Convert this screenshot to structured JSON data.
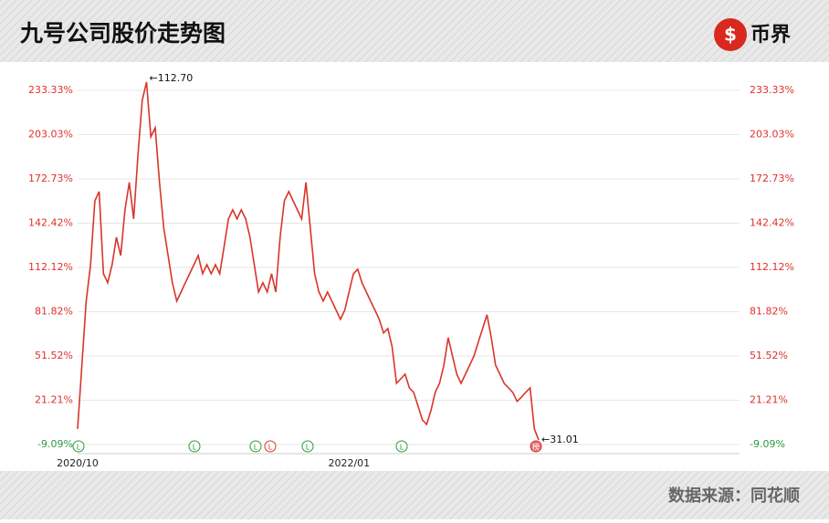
{
  "chart_data": {
    "type": "line",
    "title": "九号公司股价走势图",
    "brand": "币界",
    "source": "数据来源：同花顺",
    "categories": [
      "2020/10",
      null,
      null,
      null,
      null,
      null,
      null,
      null,
      null,
      null,
      null,
      null,
      null,
      null,
      null,
      null,
      null,
      null,
      null,
      null,
      null,
      null,
      null,
      null,
      null,
      null,
      null,
      null,
      null,
      null,
      null,
      null,
      null,
      null,
      null,
      null,
      null,
      null,
      null,
      null,
      null,
      null,
      null,
      null,
      null,
      null,
      null,
      null,
      null,
      null,
      null,
      null,
      null,
      null,
      null,
      null,
      null,
      null,
      null,
      null,
      null,
      null,
      null,
      "2022/01",
      null,
      null,
      null,
      null,
      null,
      null,
      null,
      null,
      null,
      null,
      null,
      null,
      null,
      null,
      null,
      null,
      null,
      null,
      null,
      null,
      null,
      null,
      null,
      null,
      null,
      null,
      null,
      null,
      null,
      null,
      null,
      null,
      null,
      null,
      null,
      null,
      null,
      null,
      null,
      null,
      null,
      null,
      null,
      null
    ],
    "series": [
      {
        "name": "九号公司",
        "color": "#d9352a",
        "values": [
          1.6,
          45.3,
          89.1,
          114.0,
          157.8,
          164.0,
          107.8,
          101.6,
          114.0,
          132.8,
          120.3,
          151.5,
          170.3,
          145.3,
          189.0,
          226.5,
          239.0,
          201.5,
          207.7,
          170.3,
          139.0,
          120.3,
          101.6,
          89.1,
          95.3,
          101.6,
          107.8,
          114.0,
          120.3,
          107.8,
          114.0,
          107.8,
          114.0,
          107.8,
          126.5,
          145.3,
          151.5,
          145.3,
          151.5,
          145.3,
          132.8,
          114.0,
          95.3,
          101.6,
          95.3,
          107.8,
          95.3,
          132.8,
          157.8,
          164.0,
          157.8,
          151.5,
          145.3,
          170.3,
          139.0,
          107.8,
          95.3,
          89.1,
          95.3,
          89.1,
          82.8,
          76.6,
          82.8,
          95.3,
          107.8,
          110.9,
          101.6,
          95.3,
          89.1,
          82.8,
          76.6,
          67.2,
          70.3,
          57.8,
          32.8,
          35.9,
          39.1,
          29.7,
          26.6,
          17.2,
          7.8,
          4.7,
          14.1,
          26.6,
          32.8,
          45.3,
          64.1,
          51.6,
          39.1,
          32.8,
          39.1,
          45.3,
          51.6,
          61.1,
          70.3,
          79.7,
          64.1,
          45.3,
          39.1,
          32.8,
          29.7,
          26.6,
          20.4,
          23.3,
          26.6,
          29.7,
          1.6,
          -6.0
        ]
      }
    ],
    "annotations": [
      {
        "text": "←112.70"
      },
      {
        "text": "←31.01"
      }
    ],
    "events": [
      "L",
      "L",
      "L",
      "L",
      "L",
      "L",
      "榜"
    ],
    "ylim": [
      -15.3,
      251.4
    ],
    "yticks": [
      {
        "value": -9.09,
        "label": "-9.09%"
      },
      {
        "value": 21.21,
        "label": "21.21%"
      },
      {
        "value": 51.52,
        "label": "51.52%"
      },
      {
        "value": 81.82,
        "label": "81.82%"
      },
      {
        "value": 112.12,
        "label": "112.12%"
      },
      {
        "value": 142.42,
        "label": "142.42%"
      },
      {
        "value": 172.73,
        "label": "172.73%"
      },
      {
        "value": 203.03,
        "label": "203.03%"
      },
      {
        "value": 233.33,
        "label": "233.33%"
      }
    ],
    "grid": true
  }
}
